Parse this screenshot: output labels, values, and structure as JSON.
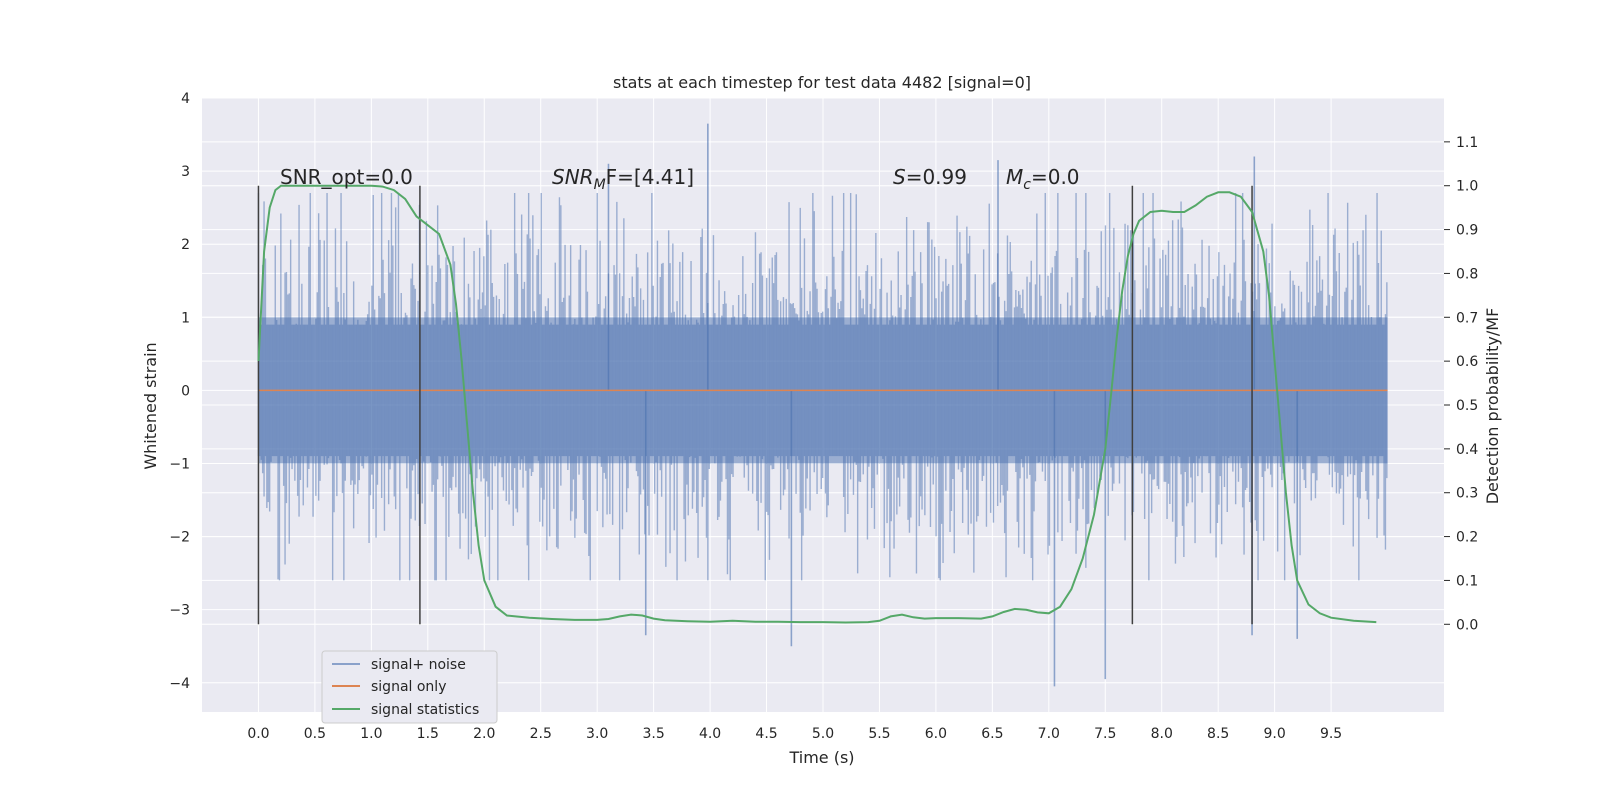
{
  "chart_data": {
    "type": "line",
    "title": "stats at each timestep for test data 4482 [signal=0]",
    "xlabel": "Time (s)",
    "ylabel": "Whitened strain",
    "y2label": "Detection probability/MF",
    "xlim": [
      -0.5,
      10.5
    ],
    "ylim": [
      -4.4,
      4.0
    ],
    "y2lim": [
      -0.2,
      1.2
    ],
    "xticks": [
      "0.0",
      "0.5",
      "1.0",
      "1.5",
      "2.0",
      "2.5",
      "3.0",
      "3.5",
      "4.0",
      "4.5",
      "5.0",
      "5.5",
      "6.0",
      "6.5",
      "7.0",
      "7.5",
      "8.0",
      "8.5",
      "9.0",
      "9.5"
    ],
    "yticks": [
      "4",
      "3",
      "2",
      "1",
      "0",
      "−1",
      "−2",
      "−3",
      "−4"
    ],
    "y2ticks": [
      "1.1",
      "1.0",
      "0.9",
      "0.8",
      "0.7",
      "0.6",
      "0.5",
      "0.4",
      "0.3",
      "0.2",
      "0.1",
      "0.0"
    ],
    "grid": true,
    "legend_position": "lower-left",
    "colors": {
      "background": "#eaeaf2",
      "noise": "#4c72b0",
      "signal_only": "#dd8452",
      "statistics": "#55a868",
      "marker_lines": "#404040"
    },
    "annotations": {
      "snr_opt": "SNR_opt=0.0",
      "snr_mf": "SNR",
      "snr_mf_sub": "M",
      "snr_mf_rest": "F=[4.41]",
      "s_var": "S",
      "s_val": "=0.99",
      "mc_var": "M",
      "mc_sub": "c",
      "mc_val": "=0.0"
    },
    "series": [
      {
        "name": "signal+ noise",
        "kind": "noise-band",
        "x_range": [
          0.0,
          10.0
        ],
        "dense_band": [
          -1.0,
          1.0
        ],
        "typical_peaks": [
          -2.5,
          2.6
        ],
        "spikes": [
          {
            "x": 3.43,
            "y": -3.35
          },
          {
            "x": 3.98,
            "y": 3.65
          },
          {
            "x": 4.72,
            "y": -3.5
          },
          {
            "x": 6.55,
            "y": 3.15
          },
          {
            "x": 7.05,
            "y": -4.05
          },
          {
            "x": 7.5,
            "y": -3.95
          },
          {
            "x": 8.8,
            "y": -3.35
          },
          {
            "x": 8.82,
            "y": 3.2
          },
          {
            "x": 9.2,
            "y": -3.4
          },
          {
            "x": 3.1,
            "y": 3.1
          }
        ]
      },
      {
        "name": "signal only",
        "x": [
          0.0,
          10.0
        ],
        "y": [
          0.0,
          0.0
        ]
      },
      {
        "name": "signal statistics",
        "axis": "right",
        "x": [
          0.0,
          0.05,
          0.1,
          0.15,
          0.2,
          0.4,
          0.6,
          0.8,
          1.0,
          1.1,
          1.2,
          1.3,
          1.4,
          1.5,
          1.6,
          1.7,
          1.75,
          1.8,
          1.85,
          1.9,
          1.95,
          2.0,
          2.1,
          2.2,
          2.4,
          2.6,
          2.8,
          3.0,
          3.1,
          3.2,
          3.3,
          3.4,
          3.5,
          3.6,
          3.8,
          4.0,
          4.2,
          4.4,
          4.6,
          4.8,
          5.0,
          5.2,
          5.4,
          5.5,
          5.6,
          5.7,
          5.8,
          5.9,
          6.0,
          6.2,
          6.4,
          6.5,
          6.6,
          6.7,
          6.8,
          6.9,
          7.0,
          7.1,
          7.2,
          7.3,
          7.4,
          7.5,
          7.55,
          7.6,
          7.65,
          7.7,
          7.75,
          7.8,
          7.9,
          8.0,
          8.1,
          8.2,
          8.3,
          8.4,
          8.5,
          8.6,
          8.7,
          8.8,
          8.9,
          8.95,
          9.0,
          9.05,
          9.1,
          9.15,
          9.2,
          9.3,
          9.4,
          9.5,
          9.7,
          9.9
        ],
        "y": [
          0.6,
          0.85,
          0.95,
          0.99,
          1.0,
          1.0,
          1.0,
          1.0,
          1.0,
          0.998,
          0.99,
          0.97,
          0.93,
          0.91,
          0.89,
          0.82,
          0.73,
          0.6,
          0.45,
          0.3,
          0.18,
          0.1,
          0.04,
          0.02,
          0.015,
          0.012,
          0.01,
          0.01,
          0.012,
          0.018,
          0.022,
          0.02,
          0.013,
          0.009,
          0.007,
          0.006,
          0.008,
          0.006,
          0.006,
          0.005,
          0.005,
          0.004,
          0.005,
          0.008,
          0.018,
          0.022,
          0.016,
          0.013,
          0.014,
          0.014,
          0.013,
          0.018,
          0.028,
          0.035,
          0.033,
          0.027,
          0.025,
          0.04,
          0.08,
          0.15,
          0.25,
          0.4,
          0.52,
          0.65,
          0.76,
          0.84,
          0.89,
          0.92,
          0.94,
          0.943,
          0.94,
          0.94,
          0.955,
          0.975,
          0.985,
          0.985,
          0.975,
          0.94,
          0.85,
          0.75,
          0.6,
          0.45,
          0.3,
          0.18,
          0.1,
          0.045,
          0.025,
          0.015,
          0.008,
          0.005
        ]
      }
    ],
    "vertical_markers": [
      0.0,
      1.43,
      7.74,
      8.8
    ],
    "legend": [
      "signal+ noise",
      "signal only",
      "signal statistics"
    ]
  }
}
